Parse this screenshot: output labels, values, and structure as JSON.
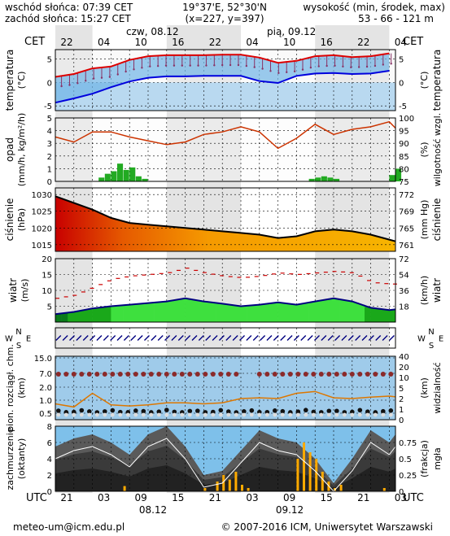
{
  "header": {
    "sunrise": "wschód słońca: 07:39 CET",
    "sunset": "zachód słońca: 15:27 CET",
    "coords": "19°37'E, 52°30'N",
    "grid": "(x=227, y=397)",
    "elev_label": "wysokość (min, środek, max)",
    "elev_values": "53 - 66 - 121 m",
    "tz_top": "CET",
    "tz_bottom": "UTC",
    "day1_top": "czw, 08.12",
    "day2_top": "pią, 09.12",
    "day1_bottom": "08.12",
    "day2_bottom": "09.12",
    "hours_top": [
      "22",
      "04",
      "10",
      "16",
      "22",
      "04",
      "10",
      "16",
      "22",
      "04"
    ],
    "hours_bottom": [
      "21",
      "03",
      "09",
      "15",
      "21",
      "03",
      "09",
      "15",
      "21",
      "03"
    ]
  },
  "footer": {
    "email": "meteo-um@icm.edu.pl",
    "copyright": "© 2007-2016 ICM, Uniwersytet Warszawski"
  },
  "colors": {
    "temp_max": "#dd0000",
    "temp_min": "#0000dd",
    "precip": "#22aa22",
    "humidity": "#cc3300",
    "pressure_line": "#000000",
    "wind_mean": "#000080",
    "gust": "#cc0000",
    "visibility": "#dd7700",
    "fog": "#ffaa00"
  },
  "chart_data": [
    {
      "type": "line",
      "name": "temperature",
      "ylabel_left": "temperatura",
      "unit_left": "(°C)",
      "ylabel_right": "temperatura",
      "unit_right": "(°C)",
      "ylim": [
        -6,
        7
      ],
      "ticks": [
        "-5",
        "0",
        "5"
      ],
      "hours": [
        0,
        3,
        6,
        9,
        12,
        15,
        18,
        21,
        24,
        27,
        30,
        33,
        36,
        39,
        42,
        45,
        48,
        51,
        54
      ],
      "series": [
        {
          "values": [
            1.2,
            1.8,
            3.0,
            3.4,
            4.8,
            5.6,
            5.8,
            5.8,
            5.8,
            5.9,
            5.9,
            5.3,
            4.2,
            4.6,
            5.6,
            5.8,
            5.4,
            5.6,
            6.2
          ]
        },
        {
          "values": [
            -4.3,
            -3.4,
            -2.4,
            -1.0,
            0.2,
            1.0,
            1.3,
            1.3,
            1.4,
            1.4,
            1.4,
            0.3,
            -0.1,
            1.4,
            1.9,
            2.0,
            1.8,
            1.9,
            2.5
          ]
        }
      ]
    },
    {
      "type": "bar",
      "name": "precipitation-humidity",
      "ylabel_left": "opad",
      "unit_left": "(mm/h, kg/m²/h)",
      "ylabel_right": "wilgotność wzgl.",
      "unit_right": "(%)",
      "ylim": [
        0,
        5
      ],
      "ylim_right": [
        75,
        100
      ],
      "ticks": [
        "0",
        "1",
        "2",
        "3",
        "4",
        "5"
      ],
      "ticks_right": [
        "75",
        "80",
        "85",
        "90",
        "95",
        "100"
      ],
      "hours": [
        0,
        1,
        2,
        3,
        4,
        5,
        6,
        7,
        8,
        9,
        10,
        11,
        12,
        13,
        14,
        15,
        16,
        17,
        18,
        19,
        20,
        21,
        22,
        23,
        24,
        25,
        26,
        27,
        28,
        29,
        30,
        31,
        32,
        33,
        34,
        35,
        36,
        37,
        38,
        39,
        40,
        41,
        42,
        43,
        44,
        45,
        46,
        47,
        48,
        49,
        50,
        51,
        52,
        53,
        54,
        55
      ],
      "precip": [
        0,
        0,
        0,
        0,
        0,
        0,
        0,
        0.3,
        0.6,
        0.8,
        1.4,
        0.9,
        1.1,
        0.4,
        0.2,
        0,
        0,
        0,
        0,
        0,
        0,
        0,
        0,
        0,
        0,
        0,
        0,
        0,
        0,
        0,
        0,
        0,
        0,
        0,
        0,
        0,
        0,
        0,
        0,
        0,
        0,
        0.2,
        0.3,
        0.4,
        0.3,
        0.2,
        0,
        0,
        0,
        0,
        0,
        0,
        0,
        0,
        0.5,
        1.0
      ],
      "humidity_hours": [
        0,
        3,
        6,
        9,
        12,
        15,
        18,
        21,
        24,
        27,
        30,
        33,
        36,
        39,
        42,
        45,
        48,
        51,
        54,
        55
      ],
      "humidity": [
        92.5,
        90.5,
        94.5,
        94.5,
        92.5,
        91.0,
        89.5,
        90.5,
        93.5,
        94.5,
        96.5,
        94.5,
        88.0,
        92.0,
        97.5,
        93.5,
        95.5,
        96.5,
        98.5,
        96.0
      ]
    },
    {
      "type": "area",
      "name": "pressure",
      "ylabel_left": "ciśnienie",
      "unit_left": "(hPa)",
      "ylabel_right": "ciśnienie",
      "unit_right": "(mm Hg)",
      "ylim": [
        1013,
        1032
      ],
      "ticks": [
        "1015",
        "1020",
        "1025",
        "1030"
      ],
      "ticks_right": [
        "761",
        "765",
        "769",
        "772"
      ],
      "hours": [
        0,
        3,
        6,
        9,
        12,
        15,
        18,
        21,
        24,
        27,
        30,
        33,
        36,
        39,
        42,
        45,
        48,
        51,
        54,
        55
      ],
      "values": [
        1029.5,
        1027.5,
        1025.5,
        1023.0,
        1021.5,
        1021.0,
        1020.5,
        1020.0,
        1019.5,
        1019.0,
        1018.5,
        1018.0,
        1017.0,
        1017.5,
        1019.0,
        1019.5,
        1019.0,
        1018.0,
        1016.5,
        1016.0
      ]
    },
    {
      "type": "area",
      "name": "wind",
      "ylabel_left": "wiatr",
      "unit_left": "(m/s)",
      "ylabel_right": "wiatr",
      "unit_right": "(km/h)",
      "ylim": [
        0,
        20
      ],
      "ticks": [
        "5",
        "10",
        "15",
        "20"
      ],
      "ticks_right": [
        "18",
        "36",
        "54",
        "72"
      ],
      "hours": [
        0,
        3,
        6,
        9,
        12,
        15,
        18,
        21,
        24,
        27,
        30,
        33,
        36,
        39,
        42,
        45,
        48,
        51,
        54,
        55
      ],
      "mean": [
        2.5,
        3.2,
        4.3,
        5.0,
        5.5,
        6.0,
        6.5,
        7.5,
        6.5,
        5.8,
        5.0,
        5.5,
        6.2,
        5.5,
        6.5,
        7.5,
        6.5,
        4.5,
        3.8,
        4.0
      ],
      "gust": [
        7.5,
        8.5,
        11.0,
        13.5,
        14.5,
        15.0,
        15.5,
        17.0,
        15.5,
        14.5,
        14.0,
        14.5,
        15.5,
        15.0,
        15.5,
        16.0,
        15.5,
        12.5,
        12.0,
        12.0
      ]
    },
    {
      "type": "line",
      "name": "wind-direction",
      "left_labels": [
        "W",
        "N",
        "S",
        "E"
      ],
      "right_labels": [
        "W",
        "N",
        "S",
        "E"
      ]
    },
    {
      "type": "scatter",
      "name": "cloud-base-visibility",
      "ylabel_left": "pion. rozciągł. chm.",
      "unit_left": "(km)",
      "ylabel_right": "widzialność",
      "unit_right": "(km)",
      "ticks": [
        "0.5",
        "1.0",
        "2.0",
        "7.0",
        "15.0"
      ],
      "ticks_right": [
        "0",
        "1",
        "2",
        "5",
        "10",
        "20",
        "40"
      ],
      "hours": [
        0,
        3,
        6,
        9,
        12,
        15,
        18,
        21,
        24,
        27,
        30,
        33,
        36,
        39,
        42,
        45,
        48,
        51,
        54,
        55
      ],
      "visibility": [
        1.5,
        1.2,
        3.5,
        1.4,
        1.3,
        1.4,
        1.6,
        1.6,
        1.5,
        1.6,
        2.0,
        2.2,
        2.0,
        3.5,
        4.0,
        2.2,
        2.0,
        2.4,
        2.7,
        2.5
      ]
    },
    {
      "type": "area",
      "name": "cloud-cover-fog",
      "ylabel_left": "zachmurzenie",
      "unit_left": "(oktanty)",
      "ylabel_right": "mgła",
      "unit_right": "(frakcja)",
      "ylim": [
        0,
        8
      ],
      "ticks": [
        "0",
        "2",
        "4",
        "6",
        "8"
      ],
      "ticks_right": [
        "0",
        "0.25",
        "0.5",
        "0.75"
      ],
      "hours": [
        0,
        3,
        6,
        9,
        12,
        15,
        18,
        21,
        24,
        27,
        30,
        33,
        36,
        39,
        42,
        45,
        48,
        51,
        54,
        55
      ],
      "cover": [
        5.5,
        6.5,
        7.0,
        6.0,
        4.5,
        7.0,
        8.0,
        5.5,
        2.0,
        2.5,
        5.0,
        7.5,
        6.5,
        6.0,
        4.0,
        1.0,
        4.0,
        7.5,
        6.0,
        7.0
      ],
      "fog_hours": [
        11,
        24,
        26,
        27,
        28,
        29,
        30,
        31,
        39,
        40,
        41,
        42,
        43,
        44,
        45,
        46,
        53
      ],
      "fog": [
        0.08,
        0.05,
        0.15,
        0.25,
        0.18,
        0.3,
        0.1,
        0.05,
        0.5,
        0.75,
        0.6,
        0.5,
        0.3,
        0.15,
        0.05,
        0.1,
        0.05
      ]
    }
  ]
}
